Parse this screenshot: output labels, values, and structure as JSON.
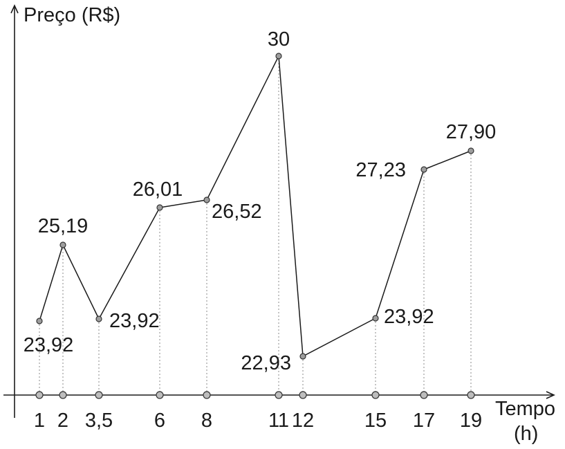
{
  "chart_data": {
    "type": "line",
    "ylabel": "Preço (R$)",
    "xlabel_line1": "Tempo",
    "xlabel_line2": "(h)",
    "x": [
      1,
      2,
      3.5,
      6,
      8,
      11,
      12,
      15,
      17,
      19
    ],
    "x_tick_labels": [
      "1",
      "2",
      "3,5",
      "6",
      "8",
      "11",
      "12",
      "15",
      "17",
      "19"
    ],
    "values": [
      23.92,
      25.19,
      23.92,
      26.01,
      26.52,
      30,
      22.93,
      23.92,
      27.23,
      27.9
    ],
    "value_labels": [
      "23,92",
      "25,19",
      "23,92",
      "26,01",
      "26,52",
      "30",
      "22,93",
      "23,92",
      "27,23",
      "27,90"
    ],
    "axis_arrows": true,
    "grid": false
  }
}
